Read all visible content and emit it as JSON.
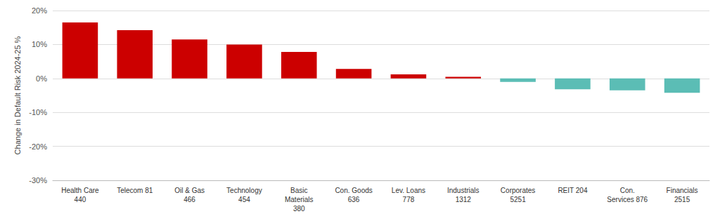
{
  "chart_data": {
    "type": "bar",
    "categories": [
      "Health Care\n440",
      "Telecom 81",
      "Oil & Gas\n466",
      "Technology\n454",
      "Basic\nMaterials\n380",
      "Con. Goods\n636",
      "Lev. Loans\n778",
      "Industrials\n1312",
      "Corporates\n5251",
      "REIT 204",
      "Con.\nServices 876",
      "Financials\n2515"
    ],
    "values": [
      16.5,
      14.2,
      11.5,
      10.0,
      7.8,
      2.8,
      1.2,
      0.5,
      -1.0,
      -3.2,
      -3.5,
      -4.2
    ],
    "colors": [
      "#cc0000",
      "#cc0000",
      "#cc0000",
      "#cc0000",
      "#cc0000",
      "#cc0000",
      "#cc0000",
      "#cc0000",
      "#5bbdb5",
      "#5bbdb5",
      "#5bbdb5",
      "#5bbdb5"
    ],
    "ylabel": "Change in Default Risk 2024-25 %",
    "ylim": [
      -30,
      20
    ],
    "yticks": [
      {
        "value": -30,
        "label": "-30%"
      },
      {
        "value": -20,
        "label": "-20%"
      },
      {
        "value": -10,
        "label": "-10%"
      },
      {
        "value": 0,
        "label": "0%"
      },
      {
        "value": 10,
        "label": "10%"
      },
      {
        "value": 20,
        "label": "20%"
      }
    ],
    "grid": true
  }
}
